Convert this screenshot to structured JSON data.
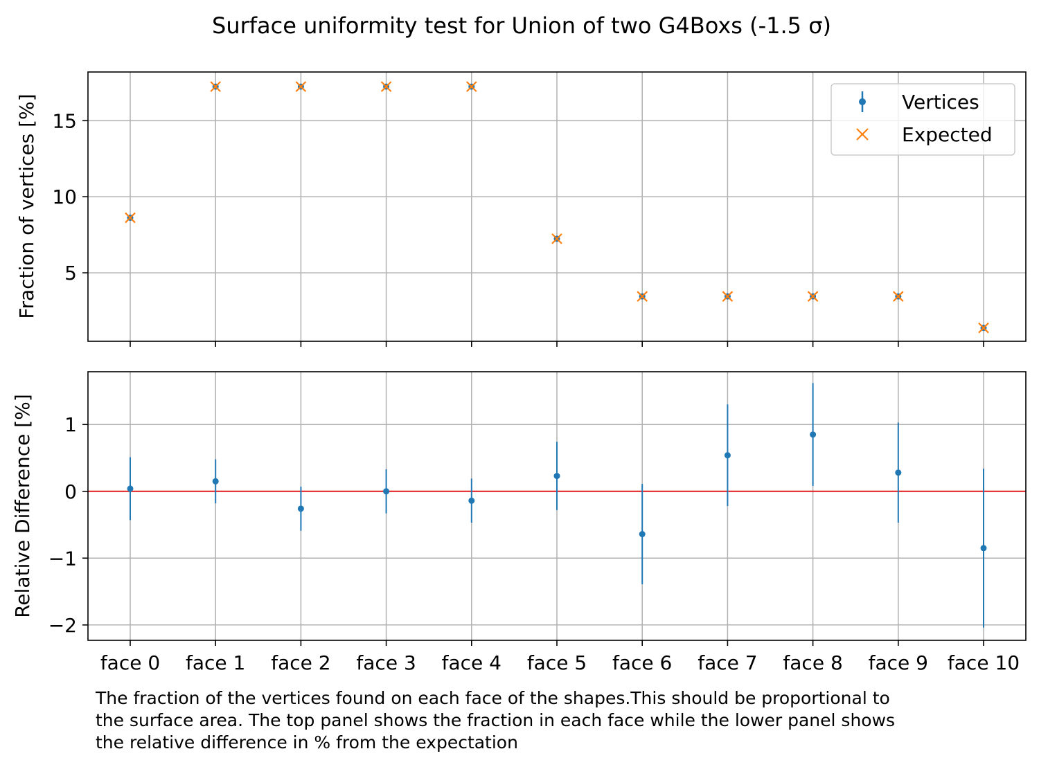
{
  "chart_data": {
    "type": "scatter",
    "title": "Surface uniformity test for Union of two G4Boxs (-1.5 σ)",
    "categories": [
      "face 0",
      "face 1",
      "face 2",
      "face 3",
      "face 4",
      "face 5",
      "face 6",
      "face 7",
      "face 8",
      "face 9",
      "face 10"
    ],
    "top_panel": {
      "ylabel": "Fraction of vertices [%]",
      "ylim": [
        0.5,
        18.2
      ],
      "yticks": [
        5,
        10,
        15
      ],
      "grid": true,
      "legend": {
        "placement": "top-right",
        "entries": [
          "Vertices",
          "Expected"
        ]
      },
      "series": [
        {
          "name": "Vertices",
          "marker": "dot-errorbar",
          "color": "#1f77b4",
          "values": [
            8.62,
            17.24,
            17.24,
            17.24,
            17.24,
            7.24,
            3.45,
            3.45,
            3.45,
            3.45,
            1.38
          ]
        },
        {
          "name": "Expected",
          "marker": "x",
          "color": "#ff7f0e",
          "values": [
            8.62,
            17.24,
            17.24,
            17.24,
            17.24,
            7.24,
            3.45,
            3.45,
            3.45,
            3.45,
            1.38
          ]
        }
      ]
    },
    "bottom_panel": {
      "ylabel": "Relative Difference [%]",
      "ylim": [
        -2.23,
        1.79
      ],
      "yticks": [
        -2,
        -1,
        0,
        1
      ],
      "reference_line": 0,
      "reference_color": "#e31a1c",
      "grid": true,
      "series": [
        {
          "color": "#1f77b4",
          "values": [
            0.04,
            0.15,
            -0.26,
            0.0,
            -0.14,
            0.23,
            -0.64,
            0.54,
            0.85,
            0.28,
            -0.85
          ],
          "errors": [
            0.47,
            0.33,
            0.33,
            0.33,
            0.33,
            0.51,
            0.75,
            0.76,
            0.77,
            0.75,
            1.19
          ]
        }
      ]
    }
  },
  "caption": [
    "The fraction of the vertices found on each face of the shapes.This should be proportional to",
    "the surface area. The top panel shows the fraction in each face while the lower panel shows",
    "the relative difference in % from the expectation"
  ]
}
